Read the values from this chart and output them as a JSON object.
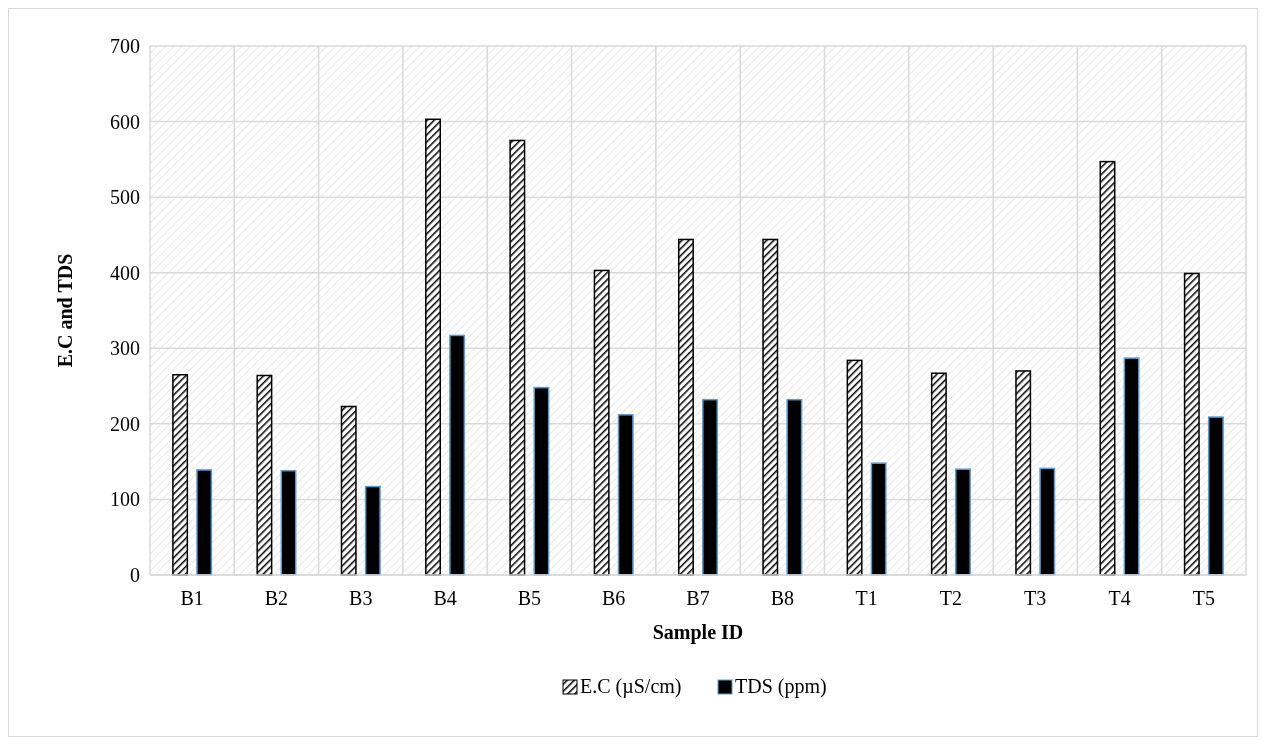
{
  "chart_data": {
    "type": "bar",
    "xlabel": "Sample ID",
    "ylabel": "E.C and TDS",
    "categories": [
      "B1",
      "B2",
      "B3",
      "B4",
      "B5",
      "B6",
      "B7",
      "B8",
      "T1",
      "T2",
      "T3",
      "T4",
      "T5"
    ],
    "series": [
      {
        "name": "E.C  (µS/cm)",
        "color": "#000000",
        "values": [
          265,
          264,
          223,
          603,
          575,
          403,
          444,
          444,
          284,
          267,
          270,
          547,
          399
        ]
      },
      {
        "name": "TDS (ppm)",
        "color": "#000000",
        "values": [
          139,
          138,
          117,
          317,
          248,
          212,
          232,
          232,
          148,
          140,
          141,
          287,
          209
        ]
      }
    ],
    "ylim": [
      0,
      700
    ],
    "yticks": [
      0,
      100,
      200,
      300,
      400,
      500,
      600,
      700
    ],
    "grid": true,
    "legend": "bottom"
  }
}
